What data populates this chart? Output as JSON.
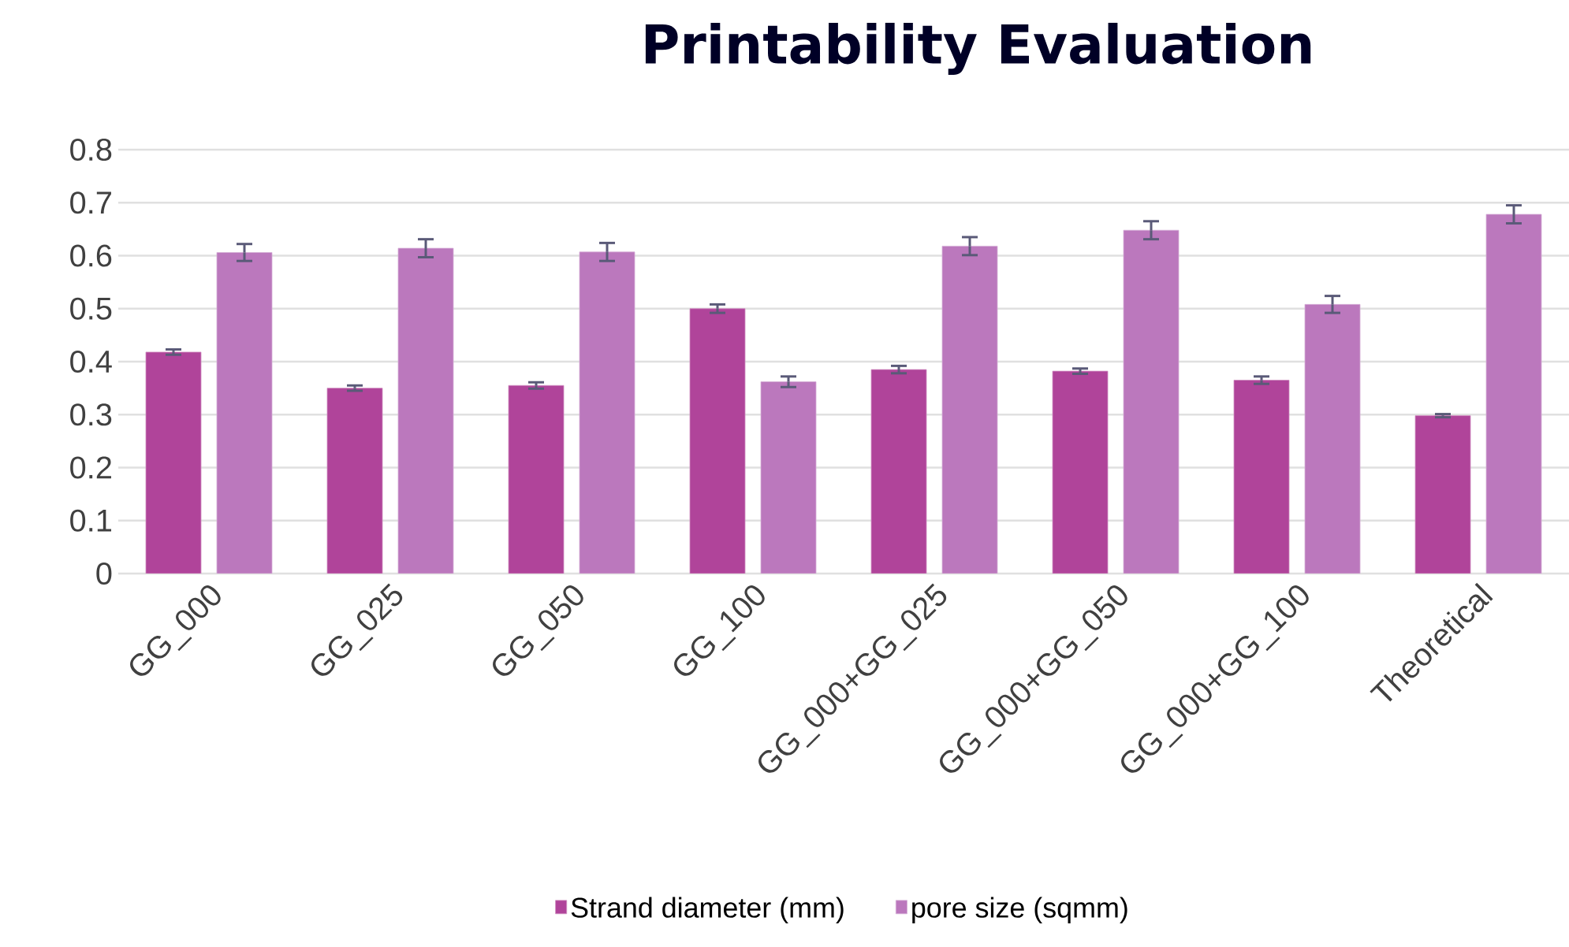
{
  "chart_data": {
    "type": "bar",
    "title": "Printability Evaluation",
    "categories": [
      "GG_000",
      "GG_025",
      "GG_050",
      "GG_100",
      "GG_000+GG_025",
      "GG_000+GG_050",
      "GG_000+GG_100",
      "Theoretical"
    ],
    "series": [
      {
        "name": "Strand diameter (mm)",
        "color": "#b0449a",
        "values": [
          0.418,
          0.35,
          0.355,
          0.5,
          0.385,
          0.382,
          0.365,
          0.298
        ],
        "errors": [
          0.005,
          0.005,
          0.006,
          0.008,
          0.007,
          0.005,
          0.007,
          0.003
        ]
      },
      {
        "name": "pore size (sqmm)",
        "color": "#bb78bd",
        "values": [
          0.606,
          0.614,
          0.607,
          0.362,
          0.618,
          0.648,
          0.508,
          0.678
        ],
        "errors": [
          0.016,
          0.017,
          0.017,
          0.01,
          0.017,
          0.017,
          0.016,
          0.017
        ]
      }
    ],
    "ylim": [
      0,
      0.8
    ],
    "yticks": [
      0,
      0.1,
      0.2,
      0.3,
      0.4,
      0.5,
      0.6,
      0.7,
      0.8
    ],
    "grid": "y",
    "legend": "bottom"
  }
}
